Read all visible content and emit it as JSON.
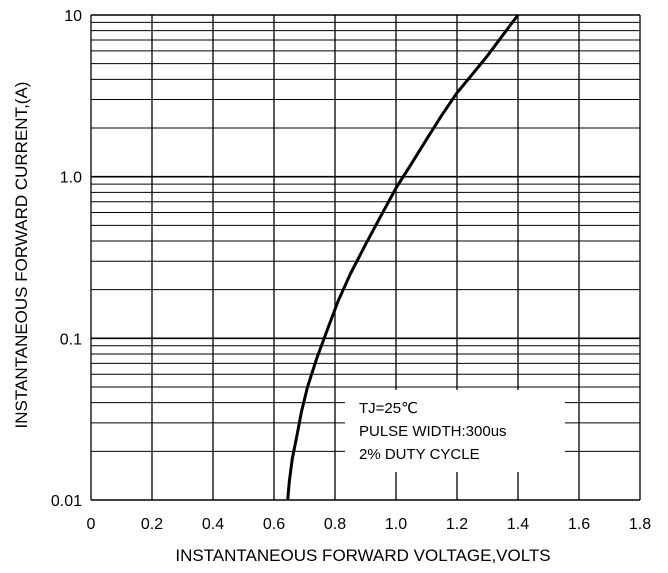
{
  "chart_data": {
    "type": "line",
    "xlabel": "INSTANTANEOUS FORWARD VOLTAGE,VOLTS",
    "ylabel": "INSTANTANEOUS FORWARD CURRENT,(A)",
    "xlim": [
      0,
      1.8
    ],
    "ylim": [
      0.01,
      10
    ],
    "yscale": "log",
    "grid": true,
    "x_ticks": [
      "0",
      "0.2",
      "0.4",
      "0.6",
      "0.8",
      "1.0",
      "1.2",
      "1.4",
      "1.6",
      "1.8"
    ],
    "y_ticks": [
      "0.01",
      "0.1",
      "1.0",
      "10"
    ],
    "series": [
      {
        "x": [
          0.645,
          0.65,
          0.66,
          0.675,
          0.69,
          0.71,
          0.74,
          0.78,
          0.81,
          0.85,
          0.9,
          0.95,
          1.0,
          1.05,
          1.1,
          1.15,
          1.2,
          1.25,
          1.3,
          1.35,
          1.4
        ],
        "y": [
          0.01,
          0.013,
          0.018,
          0.025,
          0.035,
          0.05,
          0.075,
          0.12,
          0.17,
          0.25,
          0.38,
          0.57,
          0.85,
          1.2,
          1.7,
          2.4,
          3.3,
          4.3,
          5.6,
          7.5,
          10
        ]
      }
    ],
    "annotations": [
      "TJ=25℃",
      "PULSE WIDTH:300us",
      "2% DUTY CYCLE"
    ]
  }
}
